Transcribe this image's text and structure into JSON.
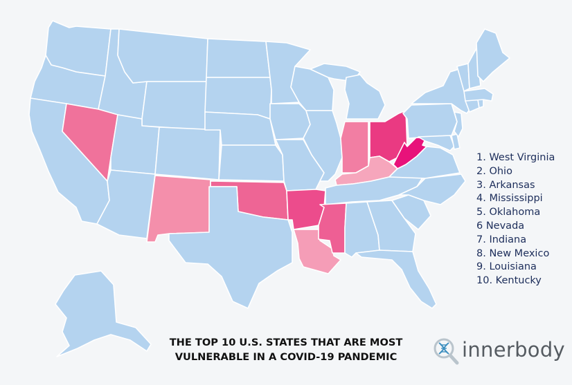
{
  "colors": {
    "background": "#f4f6f8",
    "default_state": "#b4d3ef",
    "border": "#ffffff",
    "rank_colors": {
      "West Virginia": "#e8127a",
      "Ohio": "#ea3a82",
      "Arkansas": "#ec4c8c",
      "Mississippi": "#ee5f94",
      "Oklahoma": "#ee6595",
      "Nevada": "#f0729b",
      "Indiana": "#f27ea3",
      "New Mexico": "#f48fab",
      "Louisiana": "#f59db7",
      "Kentucky": "#f6a6bc"
    },
    "legend_text": "#1c2d5a",
    "title_text": "#111111",
    "logo_text": "#555b61"
  },
  "legend": {
    "items": [
      "1. West Virginia",
      "2. Ohio",
      "3. Arkansas",
      "4. Mississippi",
      "5. Oklahoma",
      "6 Nevada",
      "7. Indiana",
      "8. New Mexico",
      "9. Louisiana",
      "10. Kentucky"
    ]
  },
  "title": {
    "line1": "THE TOP 10 U.S. STATES THAT ARE MOST",
    "line2": "VULNERABLE IN A COVID-19 PANDEMIC"
  },
  "logo": {
    "text": "innerbody",
    "icon": "magnifier-dna-icon"
  }
}
